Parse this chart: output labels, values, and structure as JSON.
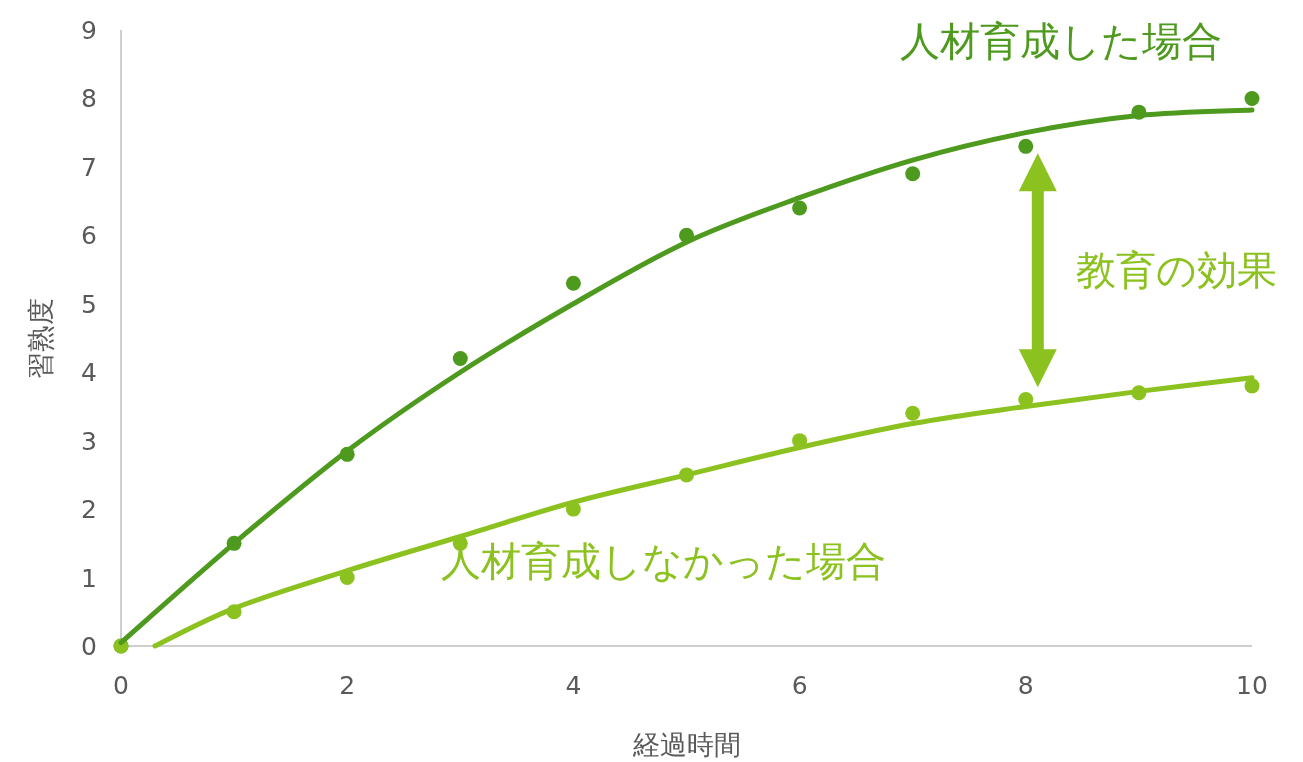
{
  "chart_data": {
    "type": "scatter",
    "xlabel": "経過時間",
    "ylabel": "習熟度",
    "xlim": [
      0,
      10
    ],
    "ylim": [
      0,
      9
    ],
    "xticks": [
      0,
      2,
      4,
      6,
      8,
      10
    ],
    "yticks": [
      0,
      1,
      2,
      3,
      4,
      5,
      6,
      7,
      8,
      9
    ],
    "grid": false,
    "series": [
      {
        "marker": "circle",
        "color": "#4e9a1f",
        "x": [
          0,
          1,
          2,
          3,
          4,
          5,
          6,
          7,
          8,
          9,
          10
        ],
        "values": [
          0,
          1.5,
          2.8,
          4.2,
          5.3,
          6.0,
          6.4,
          6.9,
          7.3,
          7.8,
          8.0
        ]
      },
      {
        "marker": "circle",
        "color": "#8cc21f",
        "x": [
          0,
          1,
          2,
          3,
          4,
          5,
          6,
          7,
          8,
          9,
          10
        ],
        "values": [
          0,
          0.5,
          1.0,
          1.5,
          2.0,
          2.5,
          3.0,
          3.4,
          3.6,
          3.7,
          3.8
        ]
      },
      {
        "type": "line",
        "name": "人材育成した場合",
        "color": "#4e9a1f",
        "x": [
          0,
          1,
          2,
          3,
          4,
          5,
          6,
          7,
          8,
          9,
          10
        ],
        "values": [
          0.05,
          1.5,
          2.85,
          4.0,
          5.0,
          5.9,
          6.55,
          7.1,
          7.5,
          7.75,
          7.83
        ]
      },
      {
        "type": "line",
        "name": "人材育成しなかった場合",
        "color": "#8cc21f",
        "x": [
          0.3,
          1,
          2,
          3,
          4,
          5,
          6,
          7,
          8,
          9,
          10
        ],
        "values": [
          0,
          0.55,
          1.1,
          1.6,
          2.1,
          2.5,
          2.9,
          3.25,
          3.5,
          3.72,
          3.92
        ]
      }
    ],
    "annotations": [
      "教育の効果"
    ]
  }
}
